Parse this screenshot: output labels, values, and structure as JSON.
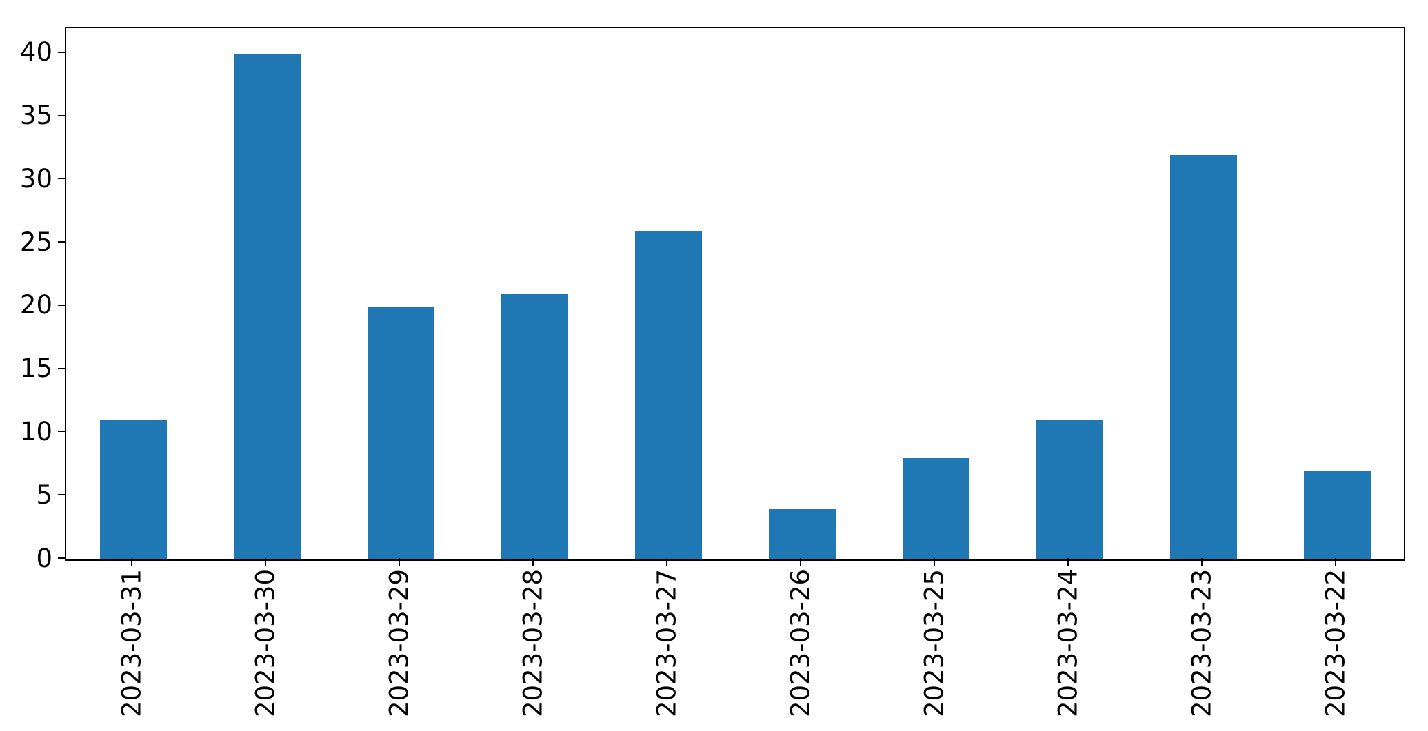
{
  "chart_data": {
    "type": "bar",
    "categories": [
      "2023-03-31",
      "2023-03-30",
      "2023-03-29",
      "2023-03-28",
      "2023-03-27",
      "2023-03-26",
      "2023-03-25",
      "2023-03-24",
      "2023-03-23",
      "2023-03-22"
    ],
    "values": [
      11,
      40,
      20,
      21,
      26,
      4,
      8,
      11,
      32,
      7
    ],
    "title": "",
    "xlabel": "",
    "ylabel": "",
    "ylim": [
      0,
      42
    ],
    "yticks": [
      0,
      5,
      10,
      15,
      20,
      25,
      30,
      35,
      40
    ],
    "x_tick_rotation": 90,
    "grid": false,
    "legend_position": "none",
    "bar_color": "#1f77b4",
    "spine_color": "#000000",
    "background_color": "#ffffff"
  }
}
